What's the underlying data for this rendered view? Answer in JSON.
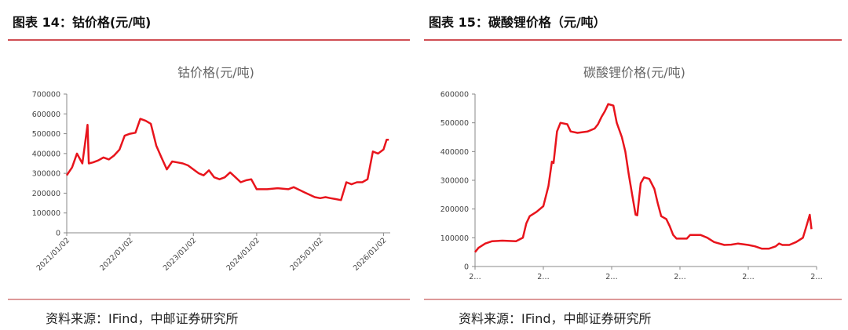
{
  "headers": [
    "图表 14：钴价格(元/吨)",
    "图表 15：碳酸锂价格（元/吨）"
  ],
  "sources": [
    "资料来源：IFind，中邮证券研究所",
    "资料来源：IFind，中邮证券研究所"
  ],
  "chart_data": [
    {
      "type": "line",
      "title": "钴价格(元/吨)",
      "color": "#e8141c",
      "x": [
        "2021/01/02",
        "2021/02/02",
        "2021/03/02",
        "2021/04/02",
        "2021/05/02",
        "2021/05/09",
        "2021/06/02",
        "2021/07/02",
        "2021/08/02",
        "2021/09/02",
        "2021/10/02",
        "2021/11/02",
        "2021/12/02",
        "2022/01/02",
        "2022/02/02",
        "2022/03/02",
        "2022/04/02",
        "2022/05/02",
        "2022/06/02",
        "2022/07/02",
        "2022/08/02",
        "2022/09/02",
        "2022/10/02",
        "2022/11/02",
        "2022/12/02",
        "2023/01/02",
        "2023/02/02",
        "2023/03/02",
        "2023/04/02",
        "2023/05/02",
        "2023/06/02",
        "2023/07/02",
        "2023/08/02",
        "2023/09/02",
        "2023/10/02",
        "2023/11/02",
        "2023/12/02",
        "2024/01/02",
        "2024/03/02",
        "2024/05/02",
        "2024/07/02",
        "2024/08/02",
        "2024/10/02",
        "2024/12/02",
        "2025/01/02",
        "2025/02/02",
        "2025/03/02",
        "2025/04/02",
        "2025/05/02",
        "2025/06/02",
        "2025/07/02",
        "2025/08/02",
        "2025/09/02",
        "2025/10/02",
        "2025/11/02",
        "2025/12/02",
        "2026/01/02",
        "2026/01/20",
        "2026/02/02"
      ],
      "values": [
        290000,
        330000,
        400000,
        350000,
        545000,
        350000,
        355000,
        365000,
        380000,
        370000,
        390000,
        420000,
        490000,
        500000,
        505000,
        575000,
        565000,
        550000,
        440000,
        380000,
        320000,
        360000,
        355000,
        350000,
        340000,
        320000,
        300000,
        290000,
        315000,
        280000,
        270000,
        280000,
        305000,
        280000,
        255000,
        265000,
        270000,
        220000,
        220000,
        225000,
        220000,
        230000,
        205000,
        180000,
        175000,
        180000,
        175000,
        170000,
        165000,
        255000,
        245000,
        255000,
        255000,
        270000,
        410000,
        400000,
        420000,
        470000,
        470000
      ],
      "xlim": [
        "2021/01/02",
        "2026/02/10"
      ],
      "xticks": [
        "2021/01/02",
        "2022/01/02",
        "2023/01/02",
        "2024/01/02",
        "2025/01/02",
        "2026/01/02"
      ],
      "ylim": [
        0,
        700000
      ],
      "yticks": [
        0,
        100000,
        200000,
        300000,
        400000,
        500000,
        600000,
        700000
      ]
    },
    {
      "type": "line",
      "title": "碳酸锂价格(元/吨)",
      "color": "#e8141c",
      "x": [
        0,
        1,
        3,
        5,
        8,
        12,
        14,
        15,
        16,
        18,
        20,
        21.5,
        22.5,
        23,
        24,
        25,
        27,
        28,
        30,
        33,
        35,
        36,
        37,
        38,
        39,
        40.5,
        41.5,
        43,
        44,
        45,
        46,
        47,
        47.5,
        48.5,
        49.5,
        51,
        52.5,
        53.5,
        54.5,
        56,
        57,
        58,
        59,
        62,
        63,
        66,
        68,
        70,
        73,
        75,
        77,
        80,
        82,
        84,
        86,
        88,
        89,
        90,
        92,
        94,
        96,
        97,
        98,
        98.5
      ],
      "values": [
        50000,
        65000,
        80000,
        88000,
        90000,
        88000,
        100000,
        150000,
        175000,
        190000,
        210000,
        280000,
        365000,
        360000,
        470000,
        500000,
        495000,
        470000,
        465000,
        470000,
        480000,
        495000,
        520000,
        540000,
        565000,
        560000,
        500000,
        450000,
        400000,
        320000,
        250000,
        180000,
        178000,
        290000,
        310000,
        305000,
        270000,
        220000,
        175000,
        165000,
        140000,
        110000,
        97000,
        97000,
        110000,
        110000,
        100000,
        85000,
        75000,
        76000,
        80000,
        75000,
        70000,
        62000,
        62000,
        70000,
        80000,
        75000,
        75000,
        85000,
        100000,
        140000,
        180000,
        130000
      ],
      "xlim": [
        0,
        100
      ],
      "xticks": [
        {
          "value": 0,
          "label": "2…"
        },
        {
          "value": 20,
          "label": "2…"
        },
        {
          "value": 40,
          "label": "2…"
        },
        {
          "value": 60,
          "label": "2…"
        },
        {
          "value": 80,
          "label": "2…"
        },
        {
          "value": 100,
          "label": "2…"
        }
      ],
      "ylim": [
        0,
        600000
      ],
      "yticks": [
        0,
        100000,
        200000,
        300000,
        400000,
        500000,
        600000
      ]
    }
  ]
}
